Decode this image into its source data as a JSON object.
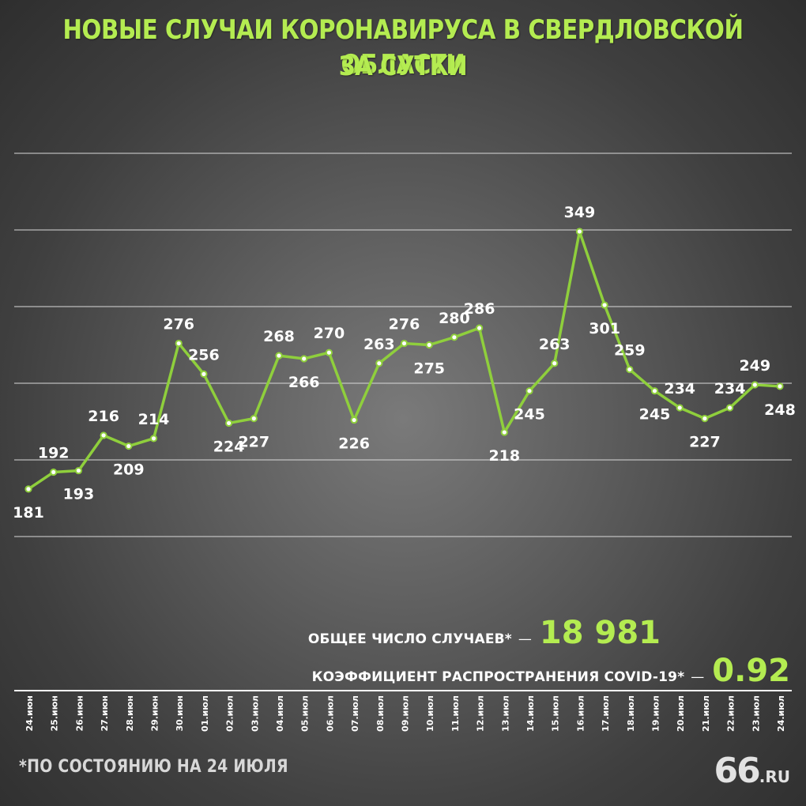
{
  "header": {
    "title_line1": "НОВЫЕ СЛУЧАИ КОРОНАВИРУСА В СВЕРДЛОВСКОЙ ОБЛАСТИ",
    "title_line2": "ЗА СУТКИ"
  },
  "summary": {
    "total_label": "ОБЩЕЕ ЧИСЛО СЛУЧАЕВ*",
    "total_dash": "—",
    "total_value": "18 981",
    "rate_label": "КОЭФФИЦИЕНТ РАСПРОСТРАНЕНИЯ COVID-19*",
    "rate_dash": "—",
    "rate_value": "0.92"
  },
  "footnote": "*ПО СОСТОЯНИЮ НА 24 ИЮЛЯ",
  "logo": {
    "big": "66",
    "small": ".RU"
  },
  "colors": {
    "accent": "#b4ec51",
    "line": "#8fcf3c",
    "grid": "#d9d9d9",
    "text": "#ffffff"
  },
  "chart_data": {
    "type": "line",
    "title": "НОВЫЕ СЛУЧАИ КОРОНАВИРУСА В СВЕРДЛОВСКОЙ ОБЛАСТИ ЗА СУТКИ",
    "categories": [
      "24.июн",
      "25.июн",
      "26.июн",
      "27.июн",
      "28.июн",
      "29.июн",
      "30.июн",
      "01.июл",
      "02.июл",
      "03.июл",
      "04.июл",
      "05.июл",
      "06.июл",
      "07.июл",
      "08.июл",
      "09.июл",
      "10.июл",
      "11.июл",
      "12.июл",
      "13.июл",
      "14.июл",
      "15.июл",
      "16.июл",
      "17.июл",
      "18.июл",
      "19.июл",
      "20.июл",
      "21.июл",
      "22.июл",
      "23.июл",
      "24.июл"
    ],
    "values": [
      181,
      192,
      193,
      216,
      209,
      214,
      276,
      256,
      224,
      227,
      268,
      266,
      270,
      226,
      263,
      276,
      275,
      280,
      286,
      218,
      245,
      263,
      349,
      301,
      259,
      245,
      234,
      227,
      234,
      249,
      248
    ],
    "ylim": [
      100,
      400
    ],
    "grid": true,
    "data_labels": true
  }
}
